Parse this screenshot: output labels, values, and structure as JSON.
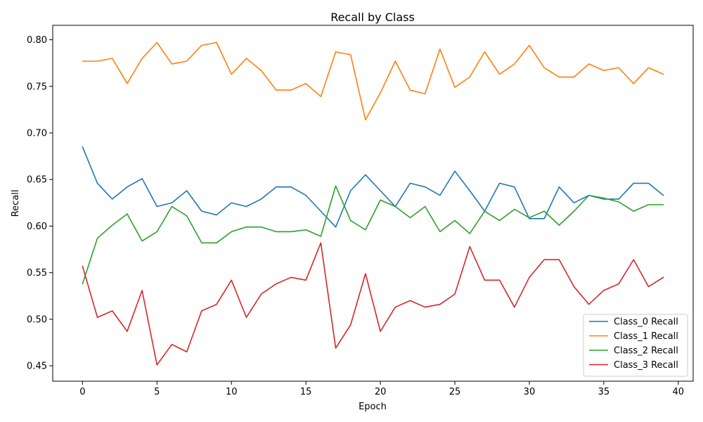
{
  "chart_data": {
    "type": "line",
    "title": "Recall by Class",
    "xlabel": "Epoch",
    "ylabel": "Recall",
    "xlim": [
      -2,
      41
    ],
    "ylim": [
      0.4335,
      0.8155
    ],
    "xticks": [
      0,
      5,
      10,
      15,
      20,
      25,
      30,
      35,
      40
    ],
    "yticks": [
      0.45,
      0.5,
      0.55,
      0.6,
      0.65,
      0.7,
      0.75,
      0.8
    ],
    "xtick_labels": [
      "0",
      "5",
      "10",
      "15",
      "20",
      "25",
      "30",
      "35",
      "40"
    ],
    "ytick_labels": [
      "0.45",
      "0.50",
      "0.55",
      "0.60",
      "0.65",
      "0.70",
      "0.75",
      "0.80"
    ],
    "grid": false,
    "legend_position": "lower-right",
    "x": [
      0,
      1,
      2,
      3,
      4,
      5,
      6,
      7,
      8,
      9,
      10,
      11,
      12,
      13,
      14,
      15,
      16,
      17,
      18,
      19,
      20,
      21,
      22,
      23,
      24,
      25,
      26,
      27,
      28,
      29,
      30,
      31,
      32,
      33,
      34,
      35,
      36,
      37,
      38,
      39
    ],
    "series": [
      {
        "name": "Class_0 Recall",
        "color": "#1f77b4",
        "values": [
          0.685,
          0.646,
          0.629,
          0.642,
          0.651,
          0.621,
          0.625,
          0.638,
          0.616,
          0.612,
          0.625,
          0.621,
          0.629,
          0.642,
          0.642,
          0.633,
          0.616,
          0.599,
          0.638,
          0.655,
          0.638,
          0.621,
          0.646,
          0.642,
          0.633,
          0.659,
          0.638,
          0.616,
          0.646,
          0.642,
          0.608,
          0.608,
          0.642,
          0.625,
          0.633,
          0.629,
          0.629,
          0.646,
          0.646,
          0.633
        ]
      },
      {
        "name": "Class_1 Recall",
        "color": "#ff7f0e",
        "values": [
          0.777,
          0.777,
          0.78,
          0.753,
          0.78,
          0.797,
          0.774,
          0.777,
          0.794,
          0.797,
          0.763,
          0.78,
          0.767,
          0.746,
          0.746,
          0.753,
          0.739,
          0.787,
          0.784,
          0.714,
          0.743,
          0.777,
          0.746,
          0.742,
          0.79,
          0.749,
          0.76,
          0.787,
          0.763,
          0.774,
          0.794,
          0.77,
          0.76,
          0.76,
          0.774,
          0.767,
          0.77,
          0.753,
          0.77,
          0.763
        ]
      },
      {
        "name": "Class_2 Recall",
        "color": "#2ca02c",
        "values": [
          0.538,
          0.587,
          0.601,
          0.613,
          0.584,
          0.594,
          0.621,
          0.611,
          0.582,
          0.582,
          0.594,
          0.599,
          0.599,
          0.594,
          0.594,
          0.596,
          0.589,
          0.643,
          0.606,
          0.596,
          0.628,
          0.621,
          0.609,
          0.621,
          0.594,
          0.606,
          0.592,
          0.616,
          0.606,
          0.618,
          0.609,
          0.616,
          0.601,
          0.616,
          0.633,
          0.63,
          0.626,
          0.616,
          0.623,
          0.623
        ]
      },
      {
        "name": "Class_3 Recall",
        "color": "#d62728",
        "values": [
          0.557,
          0.502,
          0.509,
          0.487,
          0.531,
          0.451,
          0.473,
          0.465,
          0.509,
          0.516,
          0.542,
          0.502,
          0.527,
          0.538,
          0.545,
          0.542,
          0.582,
          0.469,
          0.494,
          0.549,
          0.487,
          0.513,
          0.52,
          0.513,
          0.516,
          0.527,
          0.578,
          0.542,
          0.542,
          0.513,
          0.545,
          0.564,
          0.564,
          0.535,
          0.516,
          0.531,
          0.538,
          0.564,
          0.535,
          0.545
        ]
      }
    ]
  }
}
